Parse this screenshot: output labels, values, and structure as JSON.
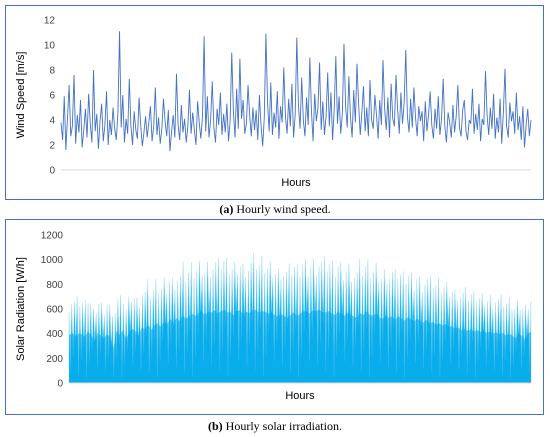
{
  "chart_data": [
    {
      "type": "line",
      "panel": "a",
      "ylabel": "Wind Speed [m/s]",
      "xlabel": "Hours",
      "ylim": [
        0,
        12
      ],
      "yticks": [
        0,
        2,
        4,
        6,
        8,
        10,
        12
      ],
      "grid": false,
      "color": "#4472c4",
      "series": [
        {
          "values": [
            3.8,
            2.4,
            5.9,
            1.6,
            4.2,
            6.8,
            2.7,
            3.5,
            7.6,
            2.1,
            4.4,
            3.0,
            5.6,
            1.8,
            3.2,
            4.9,
            2.6,
            6.1,
            3.7,
            2.2,
            8.0,
            3.1,
            4.5,
            1.7,
            3.9,
            5.3,
            2.3,
            3.6,
            6.3,
            2.0,
            4.0,
            2.8,
            5.0,
            3.3,
            2.4,
            4.6,
            11.1,
            3.4,
            6.0,
            2.2,
            4.1,
            2.9,
            7.3,
            3.5,
            2.0,
            4.7,
            3.2,
            2.5,
            5.8,
            3.6,
            1.9,
            3.0,
            4.3,
            2.6,
            3.8,
            5.1,
            2.3,
            3.5,
            6.6,
            2.8,
            4.2,
            2.1,
            3.3,
            5.7,
            3.9,
            2.7,
            4.8,
            1.5,
            3.1,
            4.4,
            2.6,
            7.7,
            3.6,
            2.4,
            5.2,
            3.0,
            4.1,
            2.2,
            3.5,
            6.4,
            2.9,
            4.6,
            3.2,
            2.0,
            5.5,
            3.8,
            2.5,
            4.3,
            10.7,
            3.1,
            5.9,
            2.6,
            4.0,
            7.1,
            3.4,
            2.2,
            4.9,
            3.6,
            6.2,
            2.8,
            4.5,
            3.0,
            5.3,
            2.3,
            3.9,
            9.4,
            4.7,
            2.6,
            6.5,
            3.3,
            8.9,
            4.1,
            5.6,
            2.9,
            3.7,
            6.8,
            4.4,
            2.7,
            5.0,
            3.2,
            4.8,
            2.4,
            6.0,
            3.6,
            1.9,
            4.2,
            10.9,
            5.4,
            3.1,
            7.0,
            2.8,
            4.6,
            3.4,
            6.3,
            2.5,
            5.1,
            3.8,
            8.2,
            4.3,
            2.9,
            5.7,
            3.5,
            6.9,
            2.6,
            4.4,
            10.6,
            5.2,
            3.3,
            7.4,
            4.0,
            2.7,
            5.8,
            3.6,
            9.0,
            4.7,
            2.3,
            6.1,
            3.9,
            5.0,
            8.6,
            3.2,
            5.5,
            2.8,
            4.3,
            7.8,
            3.5,
            6.2,
            2.4,
            4.9,
            9.1,
            3.7,
            5.9,
            2.9,
            4.5,
            10.1,
            5.1,
            3.4,
            7.5,
            4.2,
            2.6,
            6.4,
            3.8,
            8.5,
            5.3,
            2.8,
            4.6,
            6.7,
            3.1,
            5.0,
            2.7,
            7.2,
            4.0,
            3.3,
            6.0,
            4.4,
            2.5,
            5.6,
            3.6,
            8.8,
            4.9,
            3.2,
            5.8,
            2.6,
            6.9,
            4.1,
            3.5,
            7.6,
            4.8,
            2.9,
            6.2,
            3.7,
            5.4,
            9.6,
            4.3,
            3.0,
            5.7,
            3.4,
            6.6,
            4.2,
            2.7,
            5.1,
            3.9,
            4.7,
            2.3,
            5.5,
            3.1,
            4.4,
            6.3,
            3.6,
            2.5,
            4.9,
            3.3,
            5.9,
            2.8,
            4.1,
            7.3,
            3.5,
            2.2,
            4.6,
            3.8,
            2.6,
            5.2,
            3.0,
            4.3,
            6.8,
            3.4,
            2.7,
            4.8,
            5.6,
            3.1,
            2.4,
            4.0,
            3.7,
            6.5,
            2.9,
            4.5,
            3.2,
            5.3,
            2.3,
            4.1,
            3.6,
            7.9,
            4.4,
            2.8,
            5.0,
            3.3,
            6.1,
            2.5,
            4.2,
            3.0,
            5.7,
            2.1,
            4.6,
            8.1,
            3.5,
            2.6,
            5.4,
            3.9,
            4.7,
            2.9,
            6.2,
            3.2,
            4.3,
            2.4,
            5.1,
            1.8,
            3.6,
            4.9,
            2.7,
            4.0
          ]
        }
      ]
    },
    {
      "type": "area",
      "panel": "b",
      "ylabel": "Solar Radiation [W/h]",
      "xlabel": "Hours",
      "ylim": [
        0,
        1200
      ],
      "yticks": [
        0,
        200,
        400,
        600,
        800,
        1000,
        1200
      ],
      "grid": false,
      "color": "#00b0f0",
      "series": [
        {
          "note_envelope": "daily peaks",
          "values": [
            700,
            740,
            690,
            730,
            720,
            680,
            760,
            710,
            600,
            740,
            700,
            660,
            720,
            680,
            500,
            770,
            710,
            780,
            650,
            740,
            800,
            760,
            700,
            820,
            790,
            860,
            780,
            850,
            880,
            830,
            900,
            870,
            940,
            880,
            960,
            910,
            1000,
            950,
            980,
            1020,
            990,
            1030,
            1060,
            1000,
            1050,
            1040,
            1070,
            1020,
            1060,
            1080,
            1040,
            1050,
            1000,
            1060,
            1070,
            1020,
            1050,
            1030,
            1070,
            1080,
            1040,
            1060,
            1050,
            1020,
            1040,
            1000,
            980,
            1020,
            990,
            960,
            1000,
            1040,
            990,
            1020,
            1060,
            1050,
            1030,
            1070,
            1060,
            1080,
            1050,
            1040,
            1060,
            1030,
            1000,
            1050,
            1020,
            990,
            1040,
            1010,
            980,
            960,
            1030,
            1000,
            1050,
            1010,
            990,
            1020,
            970,
            940,
            1000,
            960,
            980,
            930,
            990,
            950,
            920,
            970,
            940,
            900,
            950,
            910,
            890,
            930,
            880,
            900,
            860,
            880,
            850,
            870,
            830,
            840,
            800,
            820,
            780,
            800,
            770,
            790,
            760,
            780,
            750,
            770,
            740,
            760,
            730,
            750,
            720,
            740,
            700,
            720,
            710,
            650,
            720,
            700,
            640,
            730,
            760
          ]
        }
      ]
    }
  ],
  "captions": {
    "a_label": "(a)",
    "a_text": " Hourly wind speed.",
    "b_label": "(b)",
    "b_text": " Hourly solar irradiation."
  }
}
